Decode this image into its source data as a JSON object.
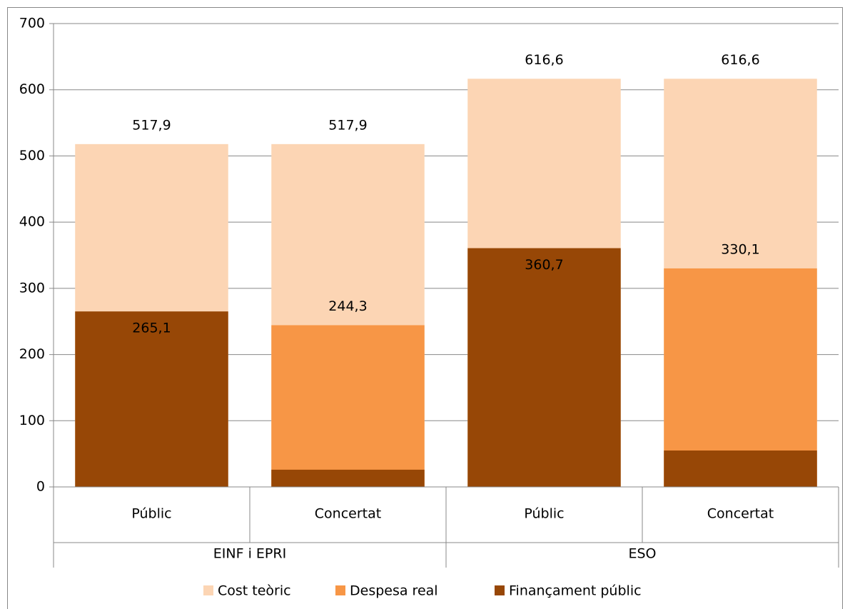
{
  "chart_data": {
    "type": "bar",
    "overlap": true,
    "groups": [
      {
        "name": "EINF i EPRI",
        "categories": [
          "Públic",
          "Concertat"
        ]
      },
      {
        "name": "ESO",
        "categories": [
          "Públic",
          "Concertat"
        ]
      }
    ],
    "series": [
      {
        "name": "Cost teòric",
        "color": "#fcd5b4",
        "values": [
          517.9,
          517.9,
          616.6,
          616.6
        ],
        "value_labels": [
          "517,9",
          "517,9",
          "616,6",
          "616,6"
        ]
      },
      {
        "name": "Despesa real",
        "color": "#f79646",
        "values": [
          null,
          244.3,
          null,
          330.1
        ],
        "value_labels": [
          null,
          "244,3",
          null,
          "330,1"
        ]
      },
      {
        "name": "Finançament públic",
        "color": "#974706",
        "values": [
          265.1,
          26,
          360.7,
          55
        ],
        "value_labels": [
          "265,1",
          null,
          "360,7",
          null
        ]
      }
    ],
    "ylim": [
      0,
      700
    ],
    "yticks": [
      0,
      100,
      200,
      300,
      400,
      500,
      600,
      700
    ],
    "grid": true,
    "legend": "bottom"
  }
}
